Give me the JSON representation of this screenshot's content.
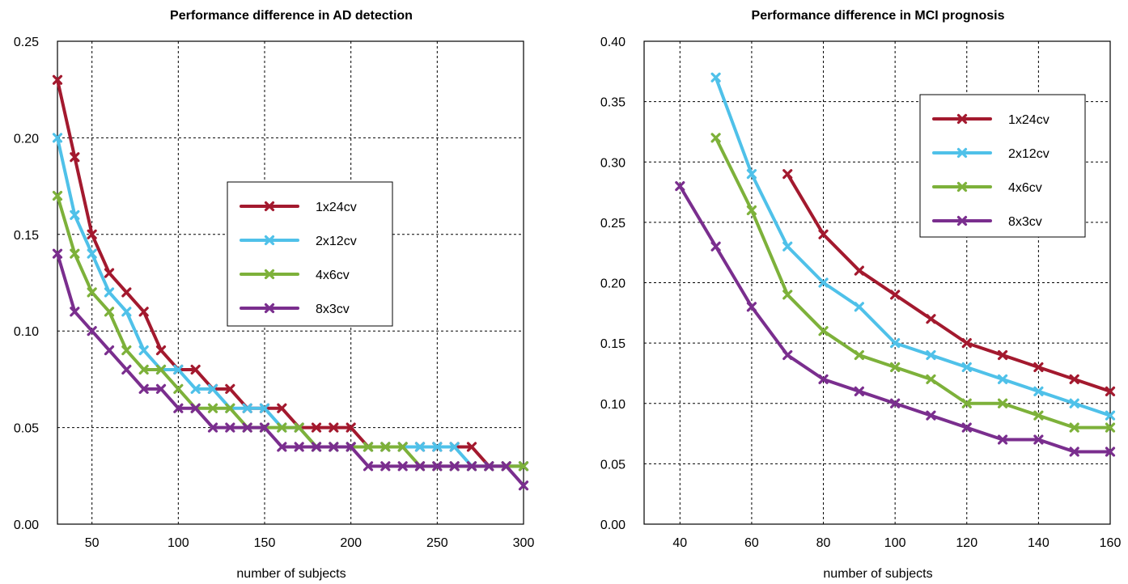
{
  "chart_data": [
    {
      "type": "line",
      "title": "Performance difference in AD detection",
      "xlabel": "number of subjects",
      "ylabel": "",
      "xlim": [
        30,
        300
      ],
      "ylim": [
        0.0,
        0.25
      ],
      "xticks": [
        "50",
        "100",
        "150",
        "200",
        "250",
        "300"
      ],
      "yticks": [
        "0.00",
        "0.05",
        "0.10",
        "0.15",
        "0.20",
        "0.25"
      ],
      "grid": true,
      "legend_position": "center-right",
      "series": [
        {
          "name": "1x24cv",
          "color": "#A3192E",
          "x": [
            30,
            40,
            50,
            60,
            70,
            80,
            90,
            100,
            110,
            120,
            130,
            140,
            150,
            160,
            170,
            180,
            190,
            200,
            210,
            220,
            230,
            240,
            250,
            260,
            270,
            280,
            290,
            300
          ],
          "y": [
            0.23,
            0.19,
            0.15,
            0.13,
            0.12,
            0.11,
            0.09,
            0.08,
            0.08,
            0.07,
            0.07,
            0.06,
            0.06,
            0.06,
            0.05,
            0.05,
            0.05,
            0.05,
            0.04,
            0.04,
            0.04,
            0.04,
            0.04,
            0.04,
            0.04,
            0.03,
            0.03,
            0.03
          ]
        },
        {
          "name": "2x12cv",
          "color": "#4FC1E9",
          "x": [
            30,
            40,
            50,
            60,
            70,
            80,
            90,
            100,
            110,
            120,
            130,
            140,
            150,
            160,
            170,
            180,
            190,
            200,
            210,
            220,
            230,
            240,
            250,
            260,
            270,
            280,
            290,
            300
          ],
          "y": [
            0.2,
            0.16,
            0.14,
            0.12,
            0.11,
            0.09,
            0.08,
            0.08,
            0.07,
            0.07,
            0.06,
            0.06,
            0.06,
            0.05,
            0.05,
            0.04,
            0.04,
            0.04,
            0.04,
            0.04,
            0.04,
            0.04,
            0.04,
            0.04,
            0.03,
            0.03,
            0.03,
            0.03
          ]
        },
        {
          "name": "4x6cv",
          "color": "#7DB13A",
          "x": [
            30,
            40,
            50,
            60,
            70,
            80,
            90,
            100,
            110,
            120,
            130,
            140,
            150,
            160,
            170,
            180,
            190,
            200,
            210,
            220,
            230,
            240,
            250,
            260,
            270,
            280,
            290,
            300
          ],
          "y": [
            0.17,
            0.14,
            0.12,
            0.11,
            0.09,
            0.08,
            0.08,
            0.07,
            0.06,
            0.06,
            0.06,
            0.05,
            0.05,
            0.05,
            0.05,
            0.04,
            0.04,
            0.04,
            0.04,
            0.04,
            0.04,
            0.03,
            0.03,
            0.03,
            0.03,
            0.03,
            0.03,
            0.03
          ]
        },
        {
          "name": "8x3cv",
          "color": "#7A2E8E",
          "x": [
            30,
            40,
            50,
            60,
            70,
            80,
            90,
            100,
            110,
            120,
            130,
            140,
            150,
            160,
            170,
            180,
            190,
            200,
            210,
            220,
            230,
            240,
            250,
            260,
            270,
            280,
            290,
            300
          ],
          "y": [
            0.14,
            0.11,
            0.1,
            0.09,
            0.08,
            0.07,
            0.07,
            0.06,
            0.06,
            0.05,
            0.05,
            0.05,
            0.05,
            0.04,
            0.04,
            0.04,
            0.04,
            0.04,
            0.03,
            0.03,
            0.03,
            0.03,
            0.03,
            0.03,
            0.03,
            0.03,
            0.03,
            0.02
          ]
        }
      ]
    },
    {
      "type": "line",
      "title": "Performance difference in MCI prognosis",
      "xlabel": "number of subjects",
      "ylabel": "",
      "xlim": [
        30,
        160
      ],
      "ylim": [
        0.0,
        0.4
      ],
      "xticks": [
        "40",
        "60",
        "80",
        "100",
        "120",
        "140",
        "160"
      ],
      "yticks": [
        "0.00",
        "0.05",
        "0.10",
        "0.15",
        "0.20",
        "0.25",
        "0.30",
        "0.35",
        "0.40"
      ],
      "grid": true,
      "legend_position": "top-right",
      "series": [
        {
          "name": "1x24cv",
          "color": "#A3192E",
          "x": [
            70,
            80,
            90,
            100,
            110,
            120,
            130,
            140,
            150,
            160
          ],
          "y": [
            0.29,
            0.24,
            0.21,
            0.19,
            0.17,
            0.15,
            0.14,
            0.13,
            0.12,
            0.11
          ]
        },
        {
          "name": "2x12cv",
          "color": "#4FC1E9",
          "x": [
            50,
            60,
            70,
            80,
            90,
            100,
            110,
            120,
            130,
            140,
            150,
            160
          ],
          "y": [
            0.37,
            0.29,
            0.23,
            0.2,
            0.18,
            0.15,
            0.14,
            0.13,
            0.12,
            0.11,
            0.1,
            0.09
          ]
        },
        {
          "name": "4x6cv",
          "color": "#7DB13A",
          "x": [
            50,
            60,
            70,
            80,
            90,
            100,
            110,
            120,
            130,
            140,
            150,
            160
          ],
          "y": [
            0.32,
            0.26,
            0.19,
            0.16,
            0.14,
            0.13,
            0.12,
            0.1,
            0.1,
            0.09,
            0.08,
            0.08
          ]
        },
        {
          "name": "8x3cv",
          "color": "#7A2E8E",
          "x": [
            40,
            50,
            60,
            70,
            80,
            90,
            100,
            110,
            120,
            130,
            140,
            150,
            160
          ],
          "y": [
            0.28,
            0.23,
            0.18,
            0.14,
            0.12,
            0.11,
            0.1,
            0.09,
            0.08,
            0.07,
            0.07,
            0.06,
            0.06
          ]
        }
      ]
    }
  ]
}
